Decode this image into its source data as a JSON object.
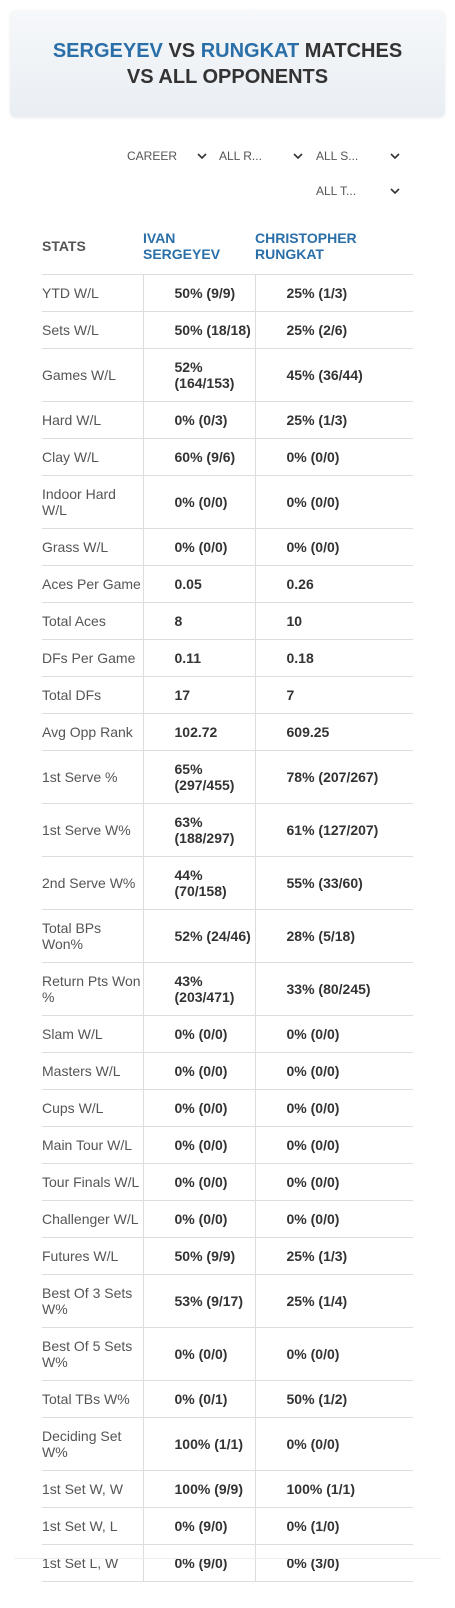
{
  "header": {
    "player1": "SERGEYEV",
    "vs": "VS",
    "player2": "RUNGKAT",
    "rest": "MATCHES VS ALL OPPONENTS"
  },
  "filters": [
    "CAREER",
    "ALL R...",
    "ALL S...",
    "ALL T..."
  ],
  "table": {
    "columns": [
      "STATS",
      "IVAN SERGEYEV",
      "CHRISTOPHER RUNGKAT"
    ],
    "rows": [
      [
        "YTD W/L",
        "50% (9/9)",
        "25% (1/3)"
      ],
      [
        "Sets W/L",
        "50% (18/18)",
        "25% (2/6)"
      ],
      [
        "Games W/L",
        "52% (164/153)",
        "45% (36/44)"
      ],
      [
        "Hard W/L",
        "0% (0/3)",
        "25% (1/3)"
      ],
      [
        "Clay W/L",
        "60% (9/6)",
        "0% (0/0)"
      ],
      [
        "Indoor Hard W/L",
        "0% (0/0)",
        "0% (0/0)"
      ],
      [
        "Grass W/L",
        "0% (0/0)",
        "0% (0/0)"
      ],
      [
        "Aces Per Game",
        "0.05",
        "0.26"
      ],
      [
        "Total Aces",
        "8",
        "10"
      ],
      [
        "DFs Per Game",
        "0.11",
        "0.18"
      ],
      [
        "Total DFs",
        "17",
        "7"
      ],
      [
        "Avg Opp Rank",
        "102.72",
        "609.25"
      ],
      [
        "1st Serve %",
        "65% (297/455)",
        "78% (207/267)"
      ],
      [
        "1st Serve W%",
        "63% (188/297)",
        "61% (127/207)"
      ],
      [
        "2nd Serve W%",
        "44% (70/158)",
        "55% (33/60)"
      ],
      [
        "Total BPs Won%",
        "52% (24/46)",
        "28% (5/18)"
      ],
      [
        "Return Pts Won %",
        "43% (203/471)",
        "33% (80/245)"
      ],
      [
        "Slam W/L",
        "0% (0/0)",
        "0% (0/0)"
      ],
      [
        "Masters W/L",
        "0% (0/0)",
        "0% (0/0)"
      ],
      [
        "Cups W/L",
        "0% (0/0)",
        "0% (0/0)"
      ],
      [
        "Main Tour W/L",
        "0% (0/0)",
        "0% (0/0)"
      ],
      [
        "Tour Finals W/L",
        "0% (0/0)",
        "0% (0/0)"
      ],
      [
        "Challenger W/L",
        "0% (0/0)",
        "0% (0/0)"
      ],
      [
        "Futures W/L",
        "50% (9/9)",
        "25% (1/3)"
      ],
      [
        "Best Of 3 Sets W%",
        "53% (9/17)",
        "25% (1/4)"
      ],
      [
        "Best Of 5 Sets W%",
        "0% (0/0)",
        "0% (0/0)"
      ],
      [
        "Total TBs W%",
        "0% (0/1)",
        "50% (1/2)"
      ],
      [
        "Deciding Set W%",
        "100% (1/1)",
        "0% (0/0)"
      ],
      [
        "1st Set W, W",
        "100% (9/9)",
        "100% (1/1)"
      ],
      [
        "1st Set W, L",
        "0% (9/0)",
        "0% (1/0)"
      ],
      [
        "1st Set L, W",
        "0% (9/0)",
        "0% (3/0)"
      ]
    ]
  }
}
